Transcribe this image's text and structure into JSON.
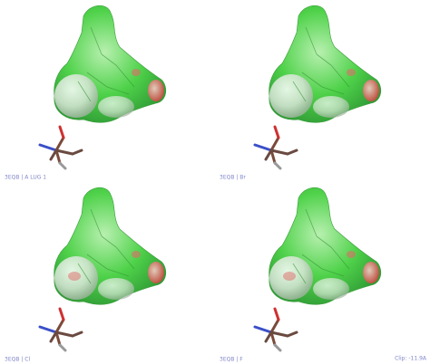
{
  "panels": [
    {
      "label": "3EQB | A LUG 1"
    },
    {
      "label": "3EQB | Br"
    },
    {
      "label": "3EQB | Cl"
    },
    {
      "label": "3EQB | F"
    }
  ],
  "clip": "Clip: -11.9A"
}
